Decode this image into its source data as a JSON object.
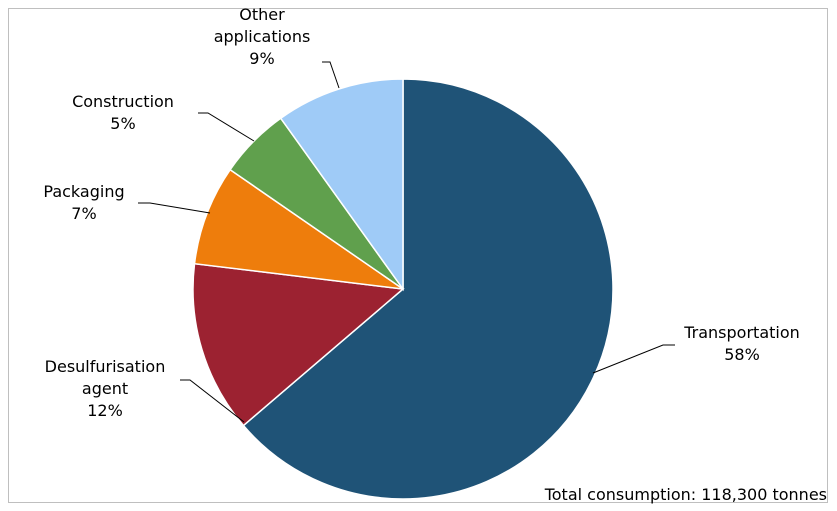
{
  "chart_data": {
    "type": "pie",
    "categories": [
      "Transportation",
      "Desulfurisation agent",
      "Packaging",
      "Construction",
      "Other applications"
    ],
    "values": [
      58,
      12,
      7,
      5,
      9
    ],
    "unit": "%",
    "colors": [
      "#1f5377",
      "#9c2231",
      "#ee7d0c",
      "#60a04d",
      "#9fcbf7"
    ],
    "labels": [
      {
        "lines": [
          "Transportation"
        ],
        "value": "58%"
      },
      {
        "lines": [
          "Desulfurisation",
          "agent"
        ],
        "value": "12%"
      },
      {
        "lines": [
          "Packaging"
        ],
        "value": "7%"
      },
      {
        "lines": [
          "Construction"
        ],
        "value": "5%"
      },
      {
        "lines": [
          "Other",
          "applications"
        ],
        "value": "9%"
      }
    ],
    "note": "Total consumption: 118,300 tonnes",
    "legend": "none"
  }
}
